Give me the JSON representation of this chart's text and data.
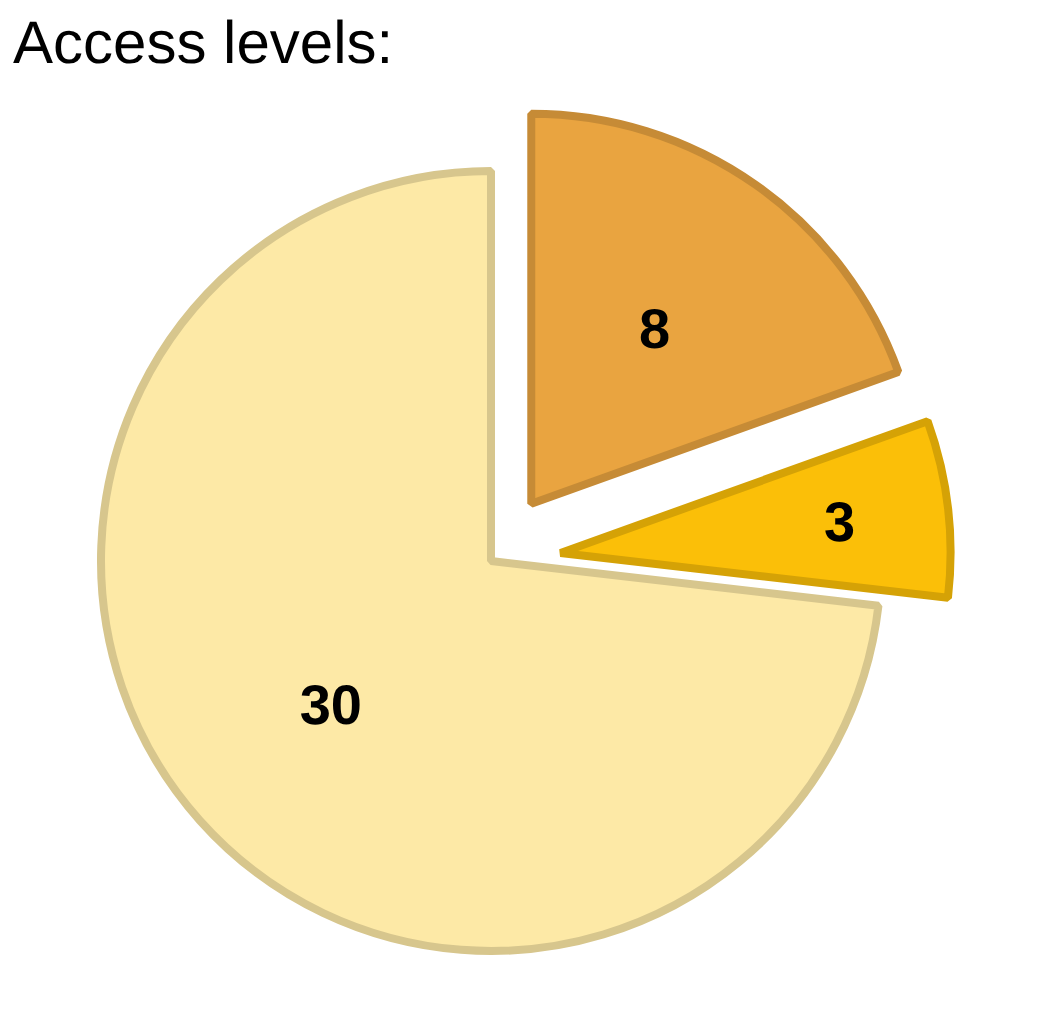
{
  "chart_data": {
    "type": "pie",
    "title": "Access levels:",
    "categories": [
      null,
      null,
      null
    ],
    "values": [
      8,
      3,
      30
    ],
    "colors": [
      "#e9a440",
      "#fbbf08",
      "#fde9a6"
    ],
    "data_labels": true
  }
}
